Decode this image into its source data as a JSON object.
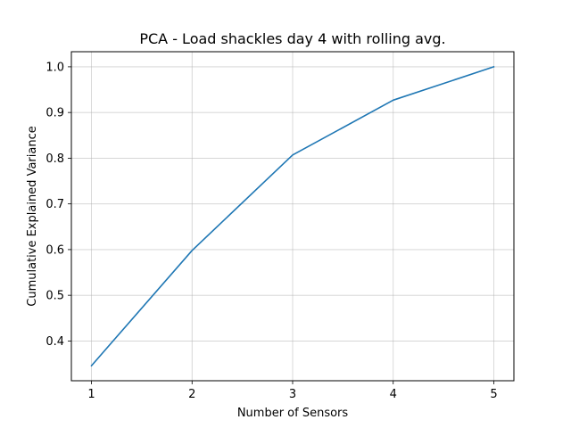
{
  "chart_data": {
    "type": "line",
    "title": "PCA - Load shackles day 4 with rolling avg.",
    "xlabel": "Number of Sensors",
    "ylabel": "Cumulative Explained Variance",
    "x": [
      1,
      2,
      3,
      4,
      5
    ],
    "y": [
      0.346,
      0.598,
      0.807,
      0.927,
      1.0
    ],
    "xlim": [
      0.8,
      5.2
    ],
    "ylim": [
      0.313,
      1.033
    ],
    "xticks": [
      1,
      2,
      3,
      4,
      5
    ],
    "xtick_labels": [
      "1",
      "2",
      "3",
      "4",
      "5"
    ],
    "yticks": [
      0.4,
      0.5,
      0.6,
      0.7,
      0.8,
      0.9,
      1.0
    ],
    "ytick_labels": [
      "0.4",
      "0.5",
      "0.6",
      "0.7",
      "0.8",
      "0.9",
      "1.0"
    ],
    "grid": true,
    "line_color": "#1f77b4"
  }
}
